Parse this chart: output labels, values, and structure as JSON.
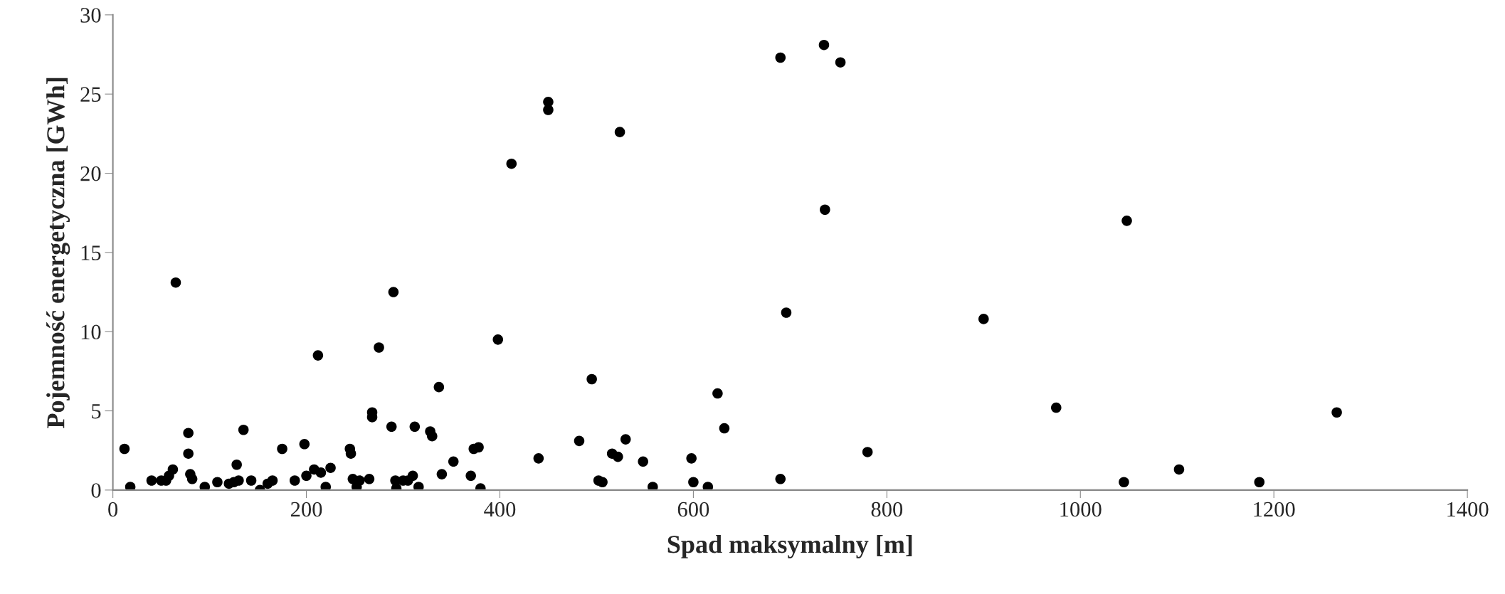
{
  "chart_data": {
    "type": "scatter",
    "xlabel": "Spad maksymalny [m]",
    "ylabel": "Pojemność energetyczna [GWh]",
    "xlim": [
      0,
      1400
    ],
    "xticks": [
      0,
      200,
      400,
      600,
      800,
      1000,
      1200,
      1400
    ],
    "ylim": [
      0,
      30
    ],
    "yticks": [
      0,
      5,
      10,
      15,
      20,
      25,
      30
    ],
    "grid": false,
    "marker": "circle",
    "series": [
      {
        "color": "#000000",
        "x": [
          12,
          18,
          40,
          50,
          55,
          58,
          62,
          65,
          78,
          78,
          80,
          82,
          95,
          108,
          120,
          125,
          128,
          130,
          135,
          143,
          152,
          160,
          165,
          175,
          188,
          198,
          200,
          208,
          212,
          215,
          220,
          225,
          245,
          246,
          248,
          252,
          255,
          265,
          268,
          268,
          275,
          288,
          290,
          292,
          293,
          300,
          305,
          310,
          312,
          316,
          328,
          330,
          337,
          340,
          352,
          370,
          373,
          378,
          380,
          398,
          412,
          440,
          450,
          450,
          482,
          495,
          502,
          506,
          516,
          522,
          524,
          530,
          548,
          558,
          598,
          600,
          615,
          625,
          632,
          690,
          690,
          696,
          735,
          736,
          752,
          780,
          900,
          975,
          1045,
          1048,
          1102,
          1185,
          1265
        ],
        "values": [
          2.6,
          0.2,
          0.6,
          0.6,
          0.6,
          0.9,
          1.3,
          13.1,
          3.6,
          2.3,
          1.0,
          0.7,
          0.2,
          0.5,
          0.4,
          0.5,
          1.6,
          0.6,
          3.8,
          0.6,
          0.0,
          0.4,
          0.6,
          2.6,
          0.6,
          2.9,
          0.9,
          1.3,
          8.5,
          1.1,
          0.2,
          1.4,
          2.6,
          2.3,
          0.7,
          0.2,
          0.6,
          0.7,
          4.9,
          4.6,
          9.0,
          4.0,
          12.5,
          0.6,
          0.1,
          0.6,
          0.6,
          0.9,
          4.0,
          0.2,
          3.7,
          3.4,
          6.5,
          1.0,
          1.8,
          0.9,
          2.6,
          2.7,
          0.1,
          9.5,
          20.6,
          2.0,
          24.5,
          24.0,
          3.1,
          7.0,
          0.6,
          0.5,
          2.3,
          2.1,
          22.6,
          3.2,
          1.8,
          0.2,
          2.0,
          0.5,
          0.2,
          6.1,
          3.9,
          27.3,
          0.7,
          11.2,
          28.1,
          17.7,
          27.0,
          2.4,
          10.8,
          5.2,
          0.5,
          17.0,
          1.3,
          0.5,
          4.9
        ]
      }
    ]
  }
}
